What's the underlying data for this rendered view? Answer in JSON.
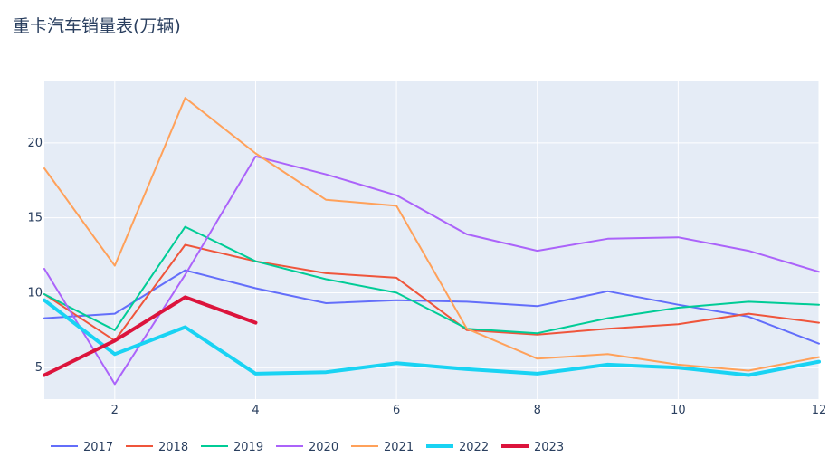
{
  "chart_data": {
    "type": "line",
    "title": "重卡汽车销量表(万辆)",
    "xlabel": "",
    "ylabel": "",
    "xlim": [
      1,
      12
    ],
    "ylim": [
      2.9,
      24.1
    ],
    "x_ticks": [
      2,
      4,
      6,
      8,
      10,
      12
    ],
    "y_ticks": [
      5,
      10,
      15,
      20
    ],
    "grid": true,
    "legend_position": "bottom-left",
    "series": [
      {
        "name": "2017",
        "color": "#636efa",
        "width": 2,
        "x": [
          1,
          2,
          3,
          4,
          5,
          6,
          7,
          8,
          9,
          10,
          11,
          12
        ],
        "values": [
          8.3,
          8.6,
          11.5,
          10.3,
          9.3,
          9.5,
          9.4,
          9.1,
          10.1,
          9.2,
          8.4,
          6.6
        ]
      },
      {
        "name": "2018",
        "color": "#ef553b",
        "width": 2,
        "x": [
          1,
          2,
          3,
          4,
          5,
          6,
          7,
          8,
          9,
          10,
          11,
          12
        ],
        "values": [
          9.9,
          6.8,
          13.2,
          12.1,
          11.3,
          11.0,
          7.5,
          7.2,
          7.6,
          7.9,
          8.6,
          8.0
        ]
      },
      {
        "name": "2019",
        "color": "#00cc96",
        "width": 2,
        "x": [
          1,
          2,
          3,
          4,
          5,
          6,
          7,
          8,
          9,
          10,
          11,
          12
        ],
        "values": [
          9.9,
          7.5,
          14.4,
          12.1,
          10.9,
          10.0,
          7.6,
          7.3,
          8.3,
          9.0,
          9.4,
          9.2
        ]
      },
      {
        "name": "2020",
        "color": "#ab63fa",
        "width": 2,
        "x": [
          1,
          2,
          3,
          4,
          5,
          6,
          7,
          8,
          9,
          10,
          11,
          12
        ],
        "values": [
          11.6,
          3.9,
          11.2,
          19.1,
          17.9,
          16.5,
          13.9,
          12.8,
          13.6,
          13.7,
          12.8,
          11.4
        ]
      },
      {
        "name": "2021",
        "color": "#ffa15a",
        "width": 2,
        "x": [
          1,
          2,
          3,
          4,
          5,
          6,
          7,
          8,
          9,
          10,
          11,
          12
        ],
        "values": [
          18.3,
          11.8,
          23.0,
          19.3,
          16.2,
          15.8,
          7.6,
          5.6,
          5.9,
          5.2,
          4.8,
          5.7
        ]
      },
      {
        "name": "2022",
        "color": "#19d3f3",
        "width": 4,
        "x": [
          1,
          2,
          3,
          4,
          5,
          6,
          7,
          8,
          9,
          10,
          11,
          12
        ],
        "values": [
          9.5,
          5.9,
          7.7,
          4.6,
          4.7,
          5.3,
          4.9,
          4.6,
          5.2,
          5.0,
          4.5,
          5.4
        ]
      },
      {
        "name": "2023",
        "color": "#dc143c",
        "width": 4,
        "x": [
          1,
          2,
          3,
          4
        ],
        "values": [
          4.5,
          6.8,
          9.7,
          8.0
        ]
      }
    ]
  }
}
